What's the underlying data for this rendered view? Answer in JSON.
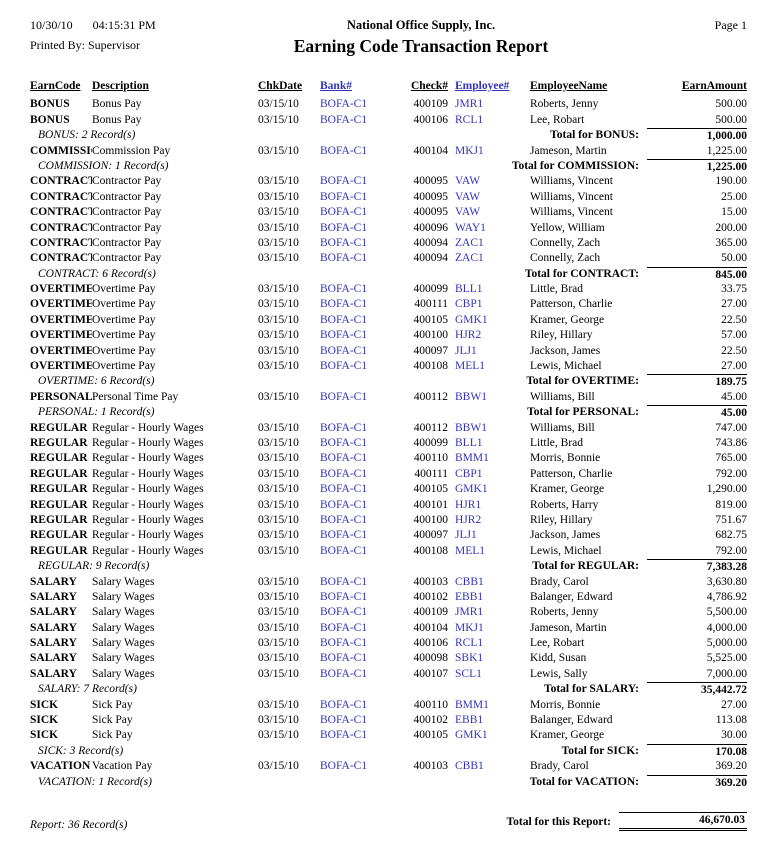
{
  "header": {
    "date": "10/30/10",
    "time": "04:15:31 PM",
    "printed_by": "Printed By: Supervisor",
    "company": "National Office Supply, Inc.",
    "title": "Earning Code Transaction Report",
    "page": "Page 1"
  },
  "columns": [
    "EarnCode",
    "Description",
    "ChkDate",
    "Bank#",
    "Check#",
    "Employee#",
    "EmployeeName",
    "EarnAmount"
  ],
  "colors": {
    "link_blue": "#3333bb"
  },
  "groups": [
    {
      "code": "BONUS",
      "rows": [
        {
          "code": "BONUS",
          "description": "Bonus Pay",
          "chk_date": "03/15/10",
          "bank": "BOFA-C1",
          "check": "400109",
          "employee_id": "JMR1",
          "employee_name": "Roberts, Jenny",
          "amount": "500.00"
        },
        {
          "code": "BONUS",
          "description": "Bonus Pay",
          "chk_date": "03/15/10",
          "bank": "BOFA-C1",
          "check": "400106",
          "employee_id": "RCL1",
          "employee_name": "Lee, Robart",
          "amount": "500.00"
        }
      ],
      "count_label": "BONUS: 2 Record(s)",
      "total_label": "Total for BONUS:",
      "total": "1,000.00"
    },
    {
      "code": "COMMISSION",
      "rows": [
        {
          "code": "COMMISSION",
          "description": "Commission Pay",
          "chk_date": "03/15/10",
          "bank": "BOFA-C1",
          "check": "400104",
          "employee_id": "MKJ1",
          "employee_name": "Jameson, Martin",
          "amount": "1,225.00"
        }
      ],
      "count_label": "COMMISSION: 1 Record(s)",
      "total_label": "Total for COMMISSION:",
      "total": "1,225.00"
    },
    {
      "code": "CONTRACT",
      "rows": [
        {
          "code": "CONTRACT",
          "description": "Contractor Pay",
          "chk_date": "03/15/10",
          "bank": "BOFA-C1",
          "check": "400095",
          "employee_id": "VAW",
          "employee_name": "Williams, Vincent",
          "amount": "190.00"
        },
        {
          "code": "CONTRACT",
          "description": "Contractor Pay",
          "chk_date": "03/15/10",
          "bank": "BOFA-C1",
          "check": "400095",
          "employee_id": "VAW",
          "employee_name": "Williams, Vincent",
          "amount": "25.00"
        },
        {
          "code": "CONTRACT",
          "description": "Contractor Pay",
          "chk_date": "03/15/10",
          "bank": "BOFA-C1",
          "check": "400095",
          "employee_id": "VAW",
          "employee_name": "Williams, Vincent",
          "amount": "15.00"
        },
        {
          "code": "CONTRACT",
          "description": "Contractor Pay",
          "chk_date": "03/15/10",
          "bank": "BOFA-C1",
          "check": "400096",
          "employee_id": "WAY1",
          "employee_name": "Yellow, William",
          "amount": "200.00"
        },
        {
          "code": "CONTRACT",
          "description": "Contractor Pay",
          "chk_date": "03/15/10",
          "bank": "BOFA-C1",
          "check": "400094",
          "employee_id": "ZAC1",
          "employee_name": "Connelly, Zach",
          "amount": "365.00"
        },
        {
          "code": "CONTRACT",
          "description": "Contractor Pay",
          "chk_date": "03/15/10",
          "bank": "BOFA-C1",
          "check": "400094",
          "employee_id": "ZAC1",
          "employee_name": "Connelly, Zach",
          "amount": "50.00"
        }
      ],
      "count_label": "CONTRACT: 6 Record(s)",
      "total_label": "Total for CONTRACT:",
      "total": "845.00"
    },
    {
      "code": "OVERTIME",
      "rows": [
        {
          "code": "OVERTIME",
          "description": "Overtime Pay",
          "chk_date": "03/15/10",
          "bank": "BOFA-C1",
          "check": "400099",
          "employee_id": "BLL1",
          "employee_name": "Little, Brad",
          "amount": "33.75"
        },
        {
          "code": "OVERTIME",
          "description": "Overtime Pay",
          "chk_date": "03/15/10",
          "bank": "BOFA-C1",
          "check": "400111",
          "employee_id": "CBP1",
          "employee_name": "Patterson, Charlie",
          "amount": "27.00"
        },
        {
          "code": "OVERTIME",
          "description": "Overtime Pay",
          "chk_date": "03/15/10",
          "bank": "BOFA-C1",
          "check": "400105",
          "employee_id": "GMK1",
          "employee_name": "Kramer, George",
          "amount": "22.50"
        },
        {
          "code": "OVERTIME",
          "description": "Overtime Pay",
          "chk_date": "03/15/10",
          "bank": "BOFA-C1",
          "check": "400100",
          "employee_id": "HJR2",
          "employee_name": "Riley, Hillary",
          "amount": "57.00"
        },
        {
          "code": "OVERTIME",
          "description": "Overtime Pay",
          "chk_date": "03/15/10",
          "bank": "BOFA-C1",
          "check": "400097",
          "employee_id": "JLJ1",
          "employee_name": "Jackson, James",
          "amount": "22.50"
        },
        {
          "code": "OVERTIME",
          "description": "Overtime Pay",
          "chk_date": "03/15/10",
          "bank": "BOFA-C1",
          "check": "400108",
          "employee_id": "MEL1",
          "employee_name": "Lewis, Michael",
          "amount": "27.00"
        }
      ],
      "count_label": "OVERTIME: 6 Record(s)",
      "total_label": "Total for OVERTIME:",
      "total": "189.75"
    },
    {
      "code": "PERSONAL",
      "rows": [
        {
          "code": "PERSONAL",
          "description": "Personal Time Pay",
          "chk_date": "03/15/10",
          "bank": "BOFA-C1",
          "check": "400112",
          "employee_id": "BBW1",
          "employee_name": "Williams, Bill",
          "amount": "45.00"
        }
      ],
      "count_label": "PERSONAL: 1 Record(s)",
      "total_label": "Total for PERSONAL:",
      "total": "45.00"
    },
    {
      "code": "REGULAR",
      "rows": [
        {
          "code": "REGULAR",
          "description": "Regular - Hourly Wages",
          "chk_date": "03/15/10",
          "bank": "BOFA-C1",
          "check": "400112",
          "employee_id": "BBW1",
          "employee_name": "Williams, Bill",
          "amount": "747.00"
        },
        {
          "code": "REGULAR",
          "description": "Regular - Hourly Wages",
          "chk_date": "03/15/10",
          "bank": "BOFA-C1",
          "check": "400099",
          "employee_id": "BLL1",
          "employee_name": "Little, Brad",
          "amount": "743.86"
        },
        {
          "code": "REGULAR",
          "description": "Regular - Hourly Wages",
          "chk_date": "03/15/10",
          "bank": "BOFA-C1",
          "check": "400110",
          "employee_id": "BMM1",
          "employee_name": "Morris, Bonnie",
          "amount": "765.00"
        },
        {
          "code": "REGULAR",
          "description": "Regular - Hourly Wages",
          "chk_date": "03/15/10",
          "bank": "BOFA-C1",
          "check": "400111",
          "employee_id": "CBP1",
          "employee_name": "Patterson, Charlie",
          "amount": "792.00"
        },
        {
          "code": "REGULAR",
          "description": "Regular - Hourly Wages",
          "chk_date": "03/15/10",
          "bank": "BOFA-C1",
          "check": "400105",
          "employee_id": "GMK1",
          "employee_name": "Kramer, George",
          "amount": "1,290.00"
        },
        {
          "code": "REGULAR",
          "description": "Regular - Hourly Wages",
          "chk_date": "03/15/10",
          "bank": "BOFA-C1",
          "check": "400101",
          "employee_id": "HJR1",
          "employee_name": "Roberts, Harry",
          "amount": "819.00"
        },
        {
          "code": "REGULAR",
          "description": "Regular - Hourly Wages",
          "chk_date": "03/15/10",
          "bank": "BOFA-C1",
          "check": "400100",
          "employee_id": "HJR2",
          "employee_name": "Riley, Hillary",
          "amount": "751.67"
        },
        {
          "code": "REGULAR",
          "description": "Regular - Hourly Wages",
          "chk_date": "03/15/10",
          "bank": "BOFA-C1",
          "check": "400097",
          "employee_id": "JLJ1",
          "employee_name": "Jackson, James",
          "amount": "682.75"
        },
        {
          "code": "REGULAR",
          "description": "Regular - Hourly Wages",
          "chk_date": "03/15/10",
          "bank": "BOFA-C1",
          "check": "400108",
          "employee_id": "MEL1",
          "employee_name": "Lewis, Michael",
          "amount": "792.00"
        }
      ],
      "count_label": "REGULAR: 9 Record(s)",
      "total_label": "Total for REGULAR:",
      "total": "7,383.28"
    },
    {
      "code": "SALARY",
      "rows": [
        {
          "code": "SALARY",
          "description": "Salary Wages",
          "chk_date": "03/15/10",
          "bank": "BOFA-C1",
          "check": "400103",
          "employee_id": "CBB1",
          "employee_name": "Brady, Carol",
          "amount": "3,630.80"
        },
        {
          "code": "SALARY",
          "description": "Salary Wages",
          "chk_date": "03/15/10",
          "bank": "BOFA-C1",
          "check": "400102",
          "employee_id": "EBB1",
          "employee_name": "Balanger, Edward",
          "amount": "4,786.92"
        },
        {
          "code": "SALARY",
          "description": "Salary Wages",
          "chk_date": "03/15/10",
          "bank": "BOFA-C1",
          "check": "400109",
          "employee_id": "JMR1",
          "employee_name": "Roberts, Jenny",
          "amount": "5,500.00"
        },
        {
          "code": "SALARY",
          "description": "Salary Wages",
          "chk_date": "03/15/10",
          "bank": "BOFA-C1",
          "check": "400104",
          "employee_id": "MKJ1",
          "employee_name": "Jameson, Martin",
          "amount": "4,000.00"
        },
        {
          "code": "SALARY",
          "description": "Salary Wages",
          "chk_date": "03/15/10",
          "bank": "BOFA-C1",
          "check": "400106",
          "employee_id": "RCL1",
          "employee_name": "Lee, Robart",
          "amount": "5,000.00"
        },
        {
          "code": "SALARY",
          "description": "Salary Wages",
          "chk_date": "03/15/10",
          "bank": "BOFA-C1",
          "check": "400098",
          "employee_id": "SBK1",
          "employee_name": "Kidd, Susan",
          "amount": "5,525.00"
        },
        {
          "code": "SALARY",
          "description": "Salary Wages",
          "chk_date": "03/15/10",
          "bank": "BOFA-C1",
          "check": "400107",
          "employee_id": "SCL1",
          "employee_name": "Lewis, Sally",
          "amount": "7,000.00"
        }
      ],
      "count_label": "SALARY: 7 Record(s)",
      "total_label": "Total for SALARY:",
      "total": "35,442.72"
    },
    {
      "code": "SICK",
      "rows": [
        {
          "code": "SICK",
          "description": "Sick Pay",
          "chk_date": "03/15/10",
          "bank": "BOFA-C1",
          "check": "400110",
          "employee_id": "BMM1",
          "employee_name": "Morris, Bonnie",
          "amount": "27.00"
        },
        {
          "code": "SICK",
          "description": "Sick Pay",
          "chk_date": "03/15/10",
          "bank": "BOFA-C1",
          "check": "400102",
          "employee_id": "EBB1",
          "employee_name": "Balanger, Edward",
          "amount": "113.08"
        },
        {
          "code": "SICK",
          "description": "Sick Pay",
          "chk_date": "03/15/10",
          "bank": "BOFA-C1",
          "check": "400105",
          "employee_id": "GMK1",
          "employee_name": "Kramer, George",
          "amount": "30.00"
        }
      ],
      "count_label": "SICK: 3 Record(s)",
      "total_label": "Total for SICK:",
      "total": "170.08"
    },
    {
      "code": "VACATION",
      "rows": [
        {
          "code": "VACATION",
          "description": "Vacation Pay",
          "chk_date": "03/15/10",
          "bank": "BOFA-C1",
          "check": "400103",
          "employee_id": "CBB1",
          "employee_name": "Brady, Carol",
          "amount": "369.20"
        }
      ],
      "count_label": "VACATION: 1 Record(s)",
      "total_label": "Total for VACATION:",
      "total": "369.20"
    }
  ],
  "footer": {
    "count_label": "Report: 36 Record(s)",
    "total_label": "Total for this Report:",
    "total": "46,670.03"
  }
}
